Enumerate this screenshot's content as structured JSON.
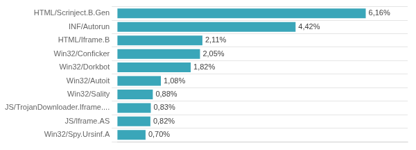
{
  "chart_data": {
    "type": "bar",
    "orientation": "horizontal",
    "categories": [
      "HTML/Scrinject.B.Gen",
      "INF/Autorun",
      "HTML/Iframe.B",
      "Win32/Conficker",
      "Win32/Dorkbot",
      "Win32/Autoit",
      "Win32/Sality",
      "JS/TrojanDownloader.Iframe....",
      "JS/Iframe.AS",
      "Win32/Spy.Ursinf.A"
    ],
    "values": [
      6.16,
      4.42,
      2.11,
      2.05,
      1.82,
      1.08,
      0.88,
      0.83,
      0.82,
      0.7
    ],
    "value_labels": [
      "6,16%",
      "4,42%",
      "2,11%",
      "2,05%",
      "1,82%",
      "1,08%",
      "0,88%",
      "0,83%",
      "0,82%",
      "0,70%"
    ],
    "data_labels": true,
    "color": "#3aa6b9",
    "xlim": [
      0,
      7.2
    ],
    "grid": true,
    "tick_labels": "y"
  }
}
